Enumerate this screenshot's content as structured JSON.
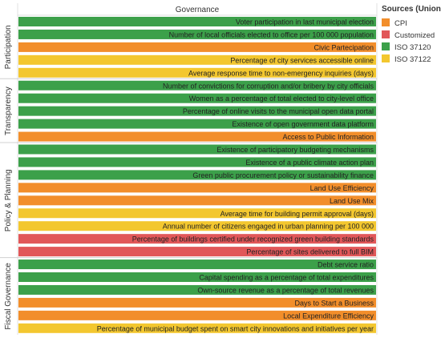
{
  "chart_data": {
    "type": "bar",
    "title": "Governance",
    "legend": {
      "title": "Sources (Union)",
      "placement": "right",
      "items": [
        {
          "name": "CPI",
          "color": "#F28E2B"
        },
        {
          "name": "Customized",
          "color": "#E15759"
        },
        {
          "name": "ISO 37120",
          "color": "#3CA04A"
        },
        {
          "name": "ISO 37122",
          "color": "#F3C72F"
        }
      ]
    },
    "groups": [
      {
        "name": "Participation",
        "rows": [
          {
            "label": "Voter participation in last municipal election",
            "source": "ISO 37120"
          },
          {
            "label": "Number of local officials elected to office per 100 000 population",
            "source": "ISO 37120"
          },
          {
            "label": "Civic Partecipation",
            "source": "CPI"
          },
          {
            "label": "Percentage of city services accessible online",
            "source": "ISO 37122"
          },
          {
            "label": "Average response time to non-emergency inquiries (days)",
            "source": "ISO 37122"
          }
        ]
      },
      {
        "name": "Transparency",
        "rows": [
          {
            "label": "Number of convictions for corruption and/or bribery by city officials",
            "source": "ISO 37120"
          },
          {
            "label": "Women as a percentage of total elected to city-level office",
            "source": "ISO 37120"
          },
          {
            "label": "Percentage of online visits to the municipal open data portal",
            "source": "ISO 37120"
          },
          {
            "label": "Existence of open government data platform",
            "source": "ISO 37120"
          },
          {
            "label": "Access to Public Information",
            "source": "CPI"
          }
        ]
      },
      {
        "name": "Policy & Planning",
        "rows": [
          {
            "label": "Existence of participatory budgeting mechanisms",
            "source": "ISO 37120"
          },
          {
            "label": "Existence of a public climate action plan",
            "source": "ISO 37120"
          },
          {
            "label": "Green public procurement policy or sustainability finance",
            "source": "ISO 37120"
          },
          {
            "label": "Land Use Efficiency",
            "source": "CPI"
          },
          {
            "label": "Land Use Mix",
            "source": "CPI"
          },
          {
            "label": "Average time for building permit approval (days)",
            "source": "ISO 37122"
          },
          {
            "label": "Annual number of citizens engaged in urban planning per 100 000",
            "source": "ISO 37122"
          },
          {
            "label": "Percentage of buildings certified under recognized green building standards",
            "source": "Customized"
          },
          {
            "label": "Percentage of sites delivered to full BIM",
            "source": "Customized"
          }
        ]
      },
      {
        "name": "Fiscal Governance",
        "rows": [
          {
            "label": "Debt service ratio",
            "source": "ISO 37120"
          },
          {
            "label": "Capital spending as a percentage of total expenditures",
            "source": "ISO 37120"
          },
          {
            "label": "Own-source revenue as a percentage of total revenues",
            "source": "ISO 37120"
          },
          {
            "label": "Days to Start a Business",
            "source": "CPI"
          },
          {
            "label": "Local Expenditure Efficiency",
            "source": "CPI"
          },
          {
            "label": "Percentage of municipal budget spent on smart city innovations and initiatives per year",
            "source": "ISO 37122"
          }
        ]
      }
    ]
  }
}
